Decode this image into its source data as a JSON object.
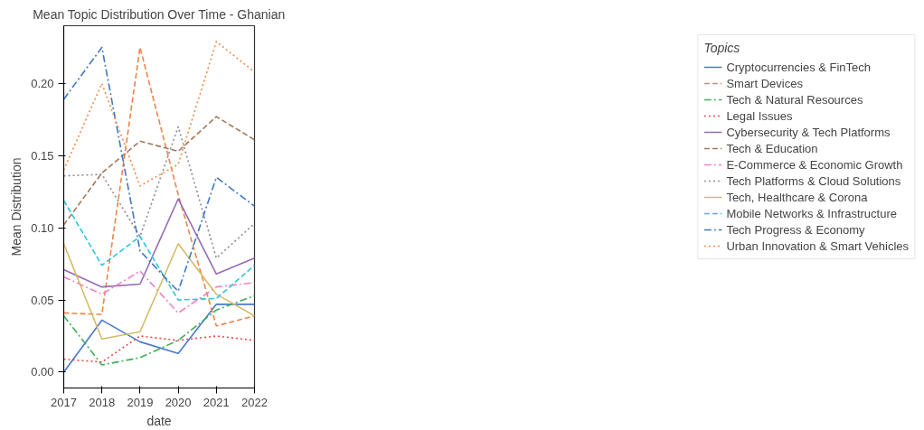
{
  "chart_data": {
    "type": "line",
    "title": "Mean Topic Distribution Over Time - Ghanian",
    "xlabel": "date",
    "ylabel": "Mean Distribution",
    "legend_title": "Topics",
    "legend": "right",
    "grid": false,
    "x": [
      2017,
      2018,
      2019,
      2020,
      2021,
      2022
    ],
    "xlim": [
      2017,
      2022
    ],
    "xticks": [
      2017,
      2018,
      2019,
      2020,
      2021,
      2022
    ],
    "ylim": [
      -0.011,
      0.24
    ],
    "yticks": [
      {
        "value": 0,
        "label": "0.00"
      },
      {
        "value": 0.05,
        "label": "0.05"
      },
      {
        "value": 0.1,
        "label": "0.10"
      },
      {
        "value": 0.15,
        "label": "0.15"
      },
      {
        "value": 0.2,
        "label": "0.20"
      }
    ],
    "series": [
      {
        "name": "Cryptocurrencies & FinTech",
        "color": "#4878d0",
        "line_style": "solid",
        "values": [
          0.0,
          0.036,
          0.021,
          0.013,
          0.047,
          0.047
        ]
      },
      {
        "name": "Smart Devices",
        "color": "#ee854a",
        "line_style": "dashed",
        "values": [
          0.041,
          0.04,
          0.225,
          0.123,
          0.032,
          0.039
        ]
      },
      {
        "name": "Tech & Natural Resources",
        "color": "#3fae5a",
        "line_style": "dashdot",
        "values": [
          0.039,
          0.005,
          0.01,
          0.022,
          0.043,
          0.053
        ]
      },
      {
        "name": "Legal Issues",
        "color": "#e8474a",
        "line_style": "dotted",
        "values": [
          0.009,
          0.007,
          0.025,
          0.022,
          0.025,
          0.022
        ]
      },
      {
        "name": "Cybersecurity & Tech Platforms",
        "color": "#956cb4",
        "line_style": "solid",
        "values": [
          0.071,
          0.059,
          0.061,
          0.12,
          0.068,
          0.079
        ]
      },
      {
        "name": "Tech & Education",
        "color": "#a0785a",
        "line_style": "dashed",
        "values": [
          0.102,
          0.138,
          0.16,
          0.153,
          0.177,
          0.161
        ]
      },
      {
        "name": "E-Commerce & Economic Growth",
        "color": "#ee82c8",
        "line_style": "dashdot",
        "values": [
          0.066,
          0.054,
          0.07,
          0.041,
          0.059,
          0.062
        ]
      },
      {
        "name": "Tech Platforms & Cloud Solutions",
        "color": "#8c8c8c",
        "line_style": "dotted",
        "values": [
          0.136,
          0.137,
          0.094,
          0.17,
          0.079,
          0.103
        ]
      },
      {
        "name": "Tech, Healthcare & Corona",
        "color": "#d5bb67",
        "line_style": "solid",
        "values": [
          0.089,
          0.023,
          0.028,
          0.089,
          0.054,
          0.039
        ]
      },
      {
        "name": "Mobile Networks & Infrastructure",
        "color": "#2ec4d8",
        "line_style": "dashed",
        "values": [
          0.119,
          0.074,
          0.094,
          0.05,
          0.051,
          0.074
        ]
      },
      {
        "name": "Tech Progress & Economy",
        "color": "#3f78c0",
        "line_style": "dashdot",
        "values": [
          0.189,
          0.225,
          0.084,
          0.056,
          0.135,
          0.115
        ]
      },
      {
        "name": "Urban Innovation & Smart Vehicles",
        "color": "#f5894a",
        "line_style": "dotted",
        "values": [
          0.14,
          0.2,
          0.129,
          0.144,
          0.229,
          0.208
        ]
      }
    ]
  }
}
